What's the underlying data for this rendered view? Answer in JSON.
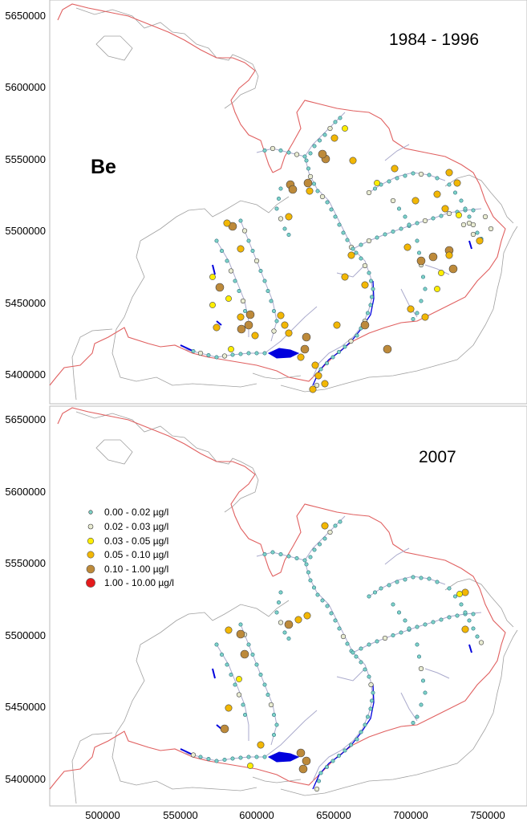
{
  "element": "Be",
  "panels": [
    {
      "period": "1984 - 1996",
      "y_ticks": [
        "5650000",
        "5600000",
        "5550000",
        "5500000",
        "5450000",
        "5400000"
      ]
    },
    {
      "period": "2007",
      "y_ticks": [
        "5650000",
        "5600000",
        "5550000",
        "5500000",
        "5450000",
        "5400000"
      ],
      "x_ticks": [
        "500000",
        "550000",
        "600000",
        "650000",
        "700000",
        "750000"
      ]
    }
  ],
  "legend": [
    {
      "range": "0.00  -  0.02 µg/l",
      "color": "#7dd3c8",
      "size": "smallest"
    },
    {
      "range": "0.02  -  0.03 µg/l",
      "color": "#e9ecd2",
      "size": "small"
    },
    {
      "range": "0.03  -  0.05 µg/l",
      "color": "#ffee00",
      "size": "medium"
    },
    {
      "range": "0.05  -  0.10 µg/l",
      "color": "#f2b705",
      "size": "medium"
    },
    {
      "range": "0.10  -  1.00 µg/l",
      "color": "#bd8a3a",
      "size": "large"
    },
    {
      "range": "1.00  -  10.00 µg/l",
      "color": "#e41a1c",
      "size": "largest"
    }
  ],
  "colors": {
    "state_border": "#e06060",
    "catchment": "#a0a0a0",
    "rivers": "#aaaacc",
    "lakes": "#0000dd"
  }
}
